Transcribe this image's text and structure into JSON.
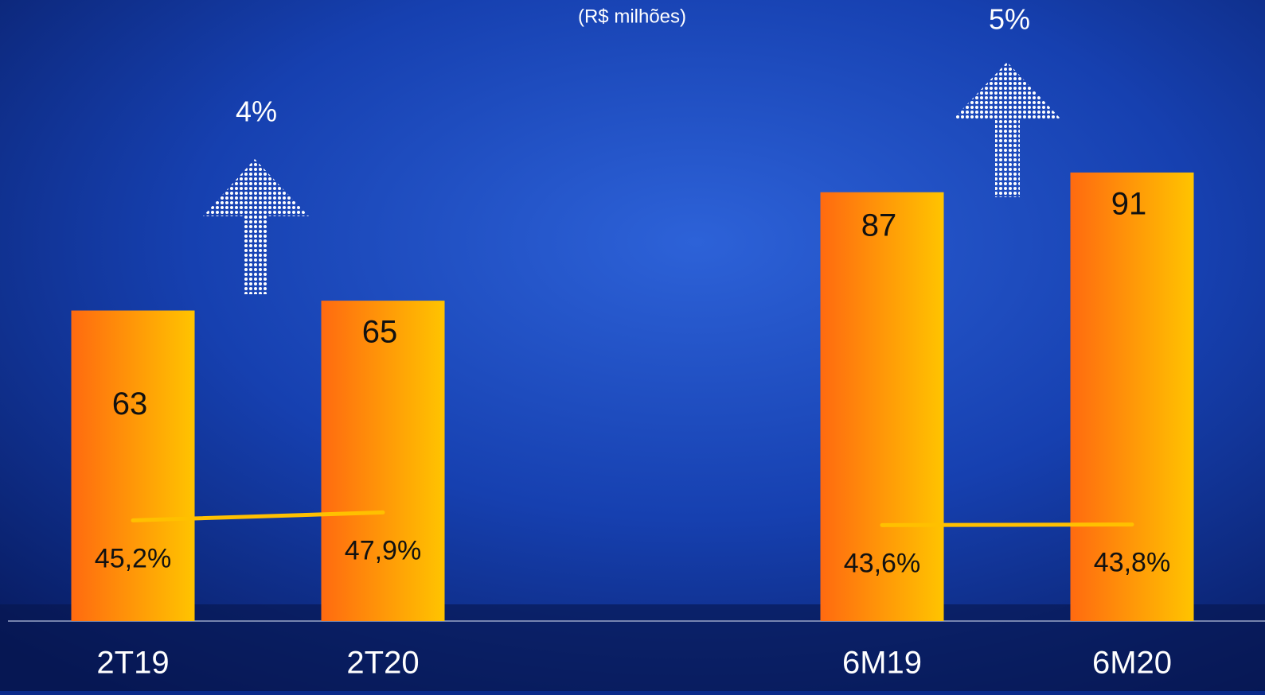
{
  "chart_data": {
    "type": "bar",
    "subtitle": "(R$ milhões)",
    "categories": [
      "2T19",
      "2T20",
      "6M19",
      "6M20"
    ],
    "ylim": [
      0,
      126
    ],
    "y2lim": [
      11,
      222
    ],
    "series": [
      {
        "color": "#ff6a10",
        "values": [
          63,
          65,
          87,
          91
        ]
      },
      {
        "type": "line",
        "axis": "y2",
        "color": "#ffc000",
        "values": [
          45.2,
          47.9,
          43.6,
          43.8
        ],
        "value_labels": [
          "45,2%",
          "47,9%",
          "43,6%",
          "43,8%"
        ]
      }
    ],
    "annotations": [
      "4%",
      "5%"
    ]
  }
}
